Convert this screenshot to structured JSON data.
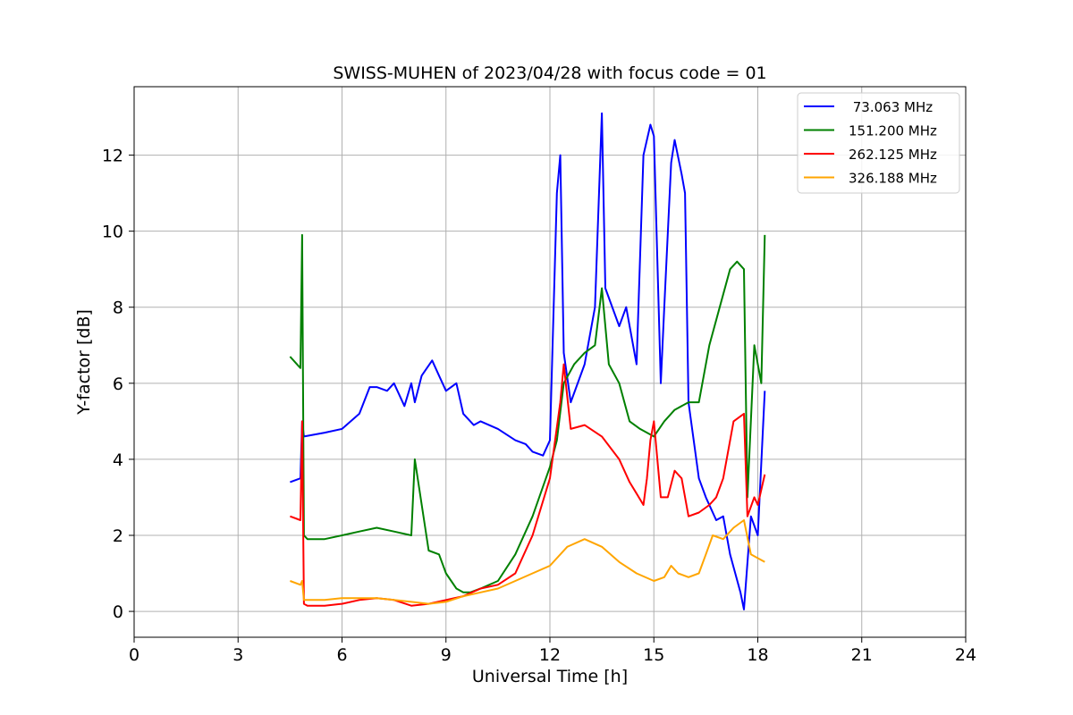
{
  "chart_data": {
    "type": "line",
    "title": "SWISS-MUHEN of 2023/04/28 with focus code = 01",
    "xlabel": "Universal Time [h]",
    "ylabel": "Y-factor [dB]",
    "xlim": [
      0,
      24
    ],
    "ylim": [
      -0.68,
      13.8
    ],
    "xticks": [
      0,
      3,
      6,
      9,
      12,
      15,
      18,
      21,
      24
    ],
    "yticks": [
      0,
      2,
      4,
      6,
      8,
      10,
      12
    ],
    "grid": true,
    "legend_position": "top-right",
    "series": [
      {
        "name": " 73.063 MHz",
        "color": "#0000ff",
        "x": [
          4.5,
          4.8,
          4.85,
          4.9,
          5.5,
          6.0,
          6.5,
          6.8,
          7.0,
          7.3,
          7.5,
          7.8,
          8.0,
          8.1,
          8.3,
          8.6,
          8.8,
          9.0,
          9.3,
          9.5,
          9.8,
          10.0,
          10.5,
          11.0,
          11.3,
          11.5,
          11.8,
          12.0,
          12.2,
          12.3,
          12.4,
          12.6,
          13.0,
          13.3,
          13.5,
          13.6,
          14.0,
          14.2,
          14.5,
          14.7,
          14.9,
          15.0,
          15.2,
          15.3,
          15.5,
          15.6,
          15.8,
          15.9,
          16.0,
          16.3,
          16.5,
          16.8,
          17.0,
          17.2,
          17.5,
          17.6,
          17.8,
          18.0,
          18.2
        ],
        "values": [
          3.4,
          3.5,
          5.0,
          4.6,
          4.7,
          4.8,
          5.2,
          5.9,
          5.9,
          5.8,
          6.0,
          5.4,
          6.0,
          5.5,
          6.2,
          6.6,
          6.2,
          5.8,
          6.0,
          5.2,
          4.9,
          5.0,
          4.8,
          4.5,
          4.4,
          4.2,
          4.1,
          4.5,
          11.0,
          12.0,
          6.8,
          5.5,
          6.5,
          8.0,
          13.1,
          8.5,
          7.5,
          8.0,
          6.5,
          12.0,
          12.8,
          12.5,
          6.0,
          8.0,
          11.8,
          12.4,
          11.5,
          11.0,
          5.5,
          3.5,
          3.0,
          2.4,
          2.5,
          1.5,
          0.5,
          0.05,
          2.5,
          2.0,
          5.8
        ]
      },
      {
        "name": "151.200 MHz",
        "color": "#008000",
        "x": [
          4.5,
          4.7,
          4.8,
          4.85,
          4.9,
          5.0,
          5.5,
          6.0,
          6.5,
          7.0,
          7.5,
          8.0,
          8.1,
          8.5,
          8.8,
          9.0,
          9.3,
          9.5,
          9.7,
          10.0,
          10.5,
          11.0,
          11.5,
          12.0,
          12.2,
          12.4,
          12.7,
          13.0,
          13.3,
          13.5,
          13.7,
          14.0,
          14.3,
          14.6,
          15.0,
          15.3,
          15.6,
          16.0,
          16.3,
          16.6,
          16.9,
          17.2,
          17.4,
          17.6,
          17.7,
          17.9,
          18.1,
          18.2
        ],
        "values": [
          6.7,
          6.5,
          6.4,
          9.9,
          2.0,
          1.9,
          1.9,
          2.0,
          2.1,
          2.2,
          2.1,
          2.0,
          4.0,
          1.6,
          1.5,
          1.0,
          0.6,
          0.5,
          0.5,
          0.6,
          0.8,
          1.5,
          2.5,
          3.8,
          4.5,
          6.0,
          6.5,
          6.8,
          7.0,
          8.5,
          6.5,
          6.0,
          5.0,
          4.8,
          4.6,
          5.0,
          5.3,
          5.5,
          5.5,
          7.0,
          8.0,
          9.0,
          9.2,
          9.0,
          3.0,
          7.0,
          6.0,
          9.9
        ]
      },
      {
        "name": "262.125 MHz",
        "color": "#ff0000",
        "x": [
          4.5,
          4.8,
          4.85,
          4.9,
          5.0,
          5.5,
          6.0,
          6.5,
          7.0,
          7.5,
          8.0,
          8.5,
          9.0,
          9.5,
          10.0,
          10.5,
          11.0,
          11.5,
          12.0,
          12.3,
          12.4,
          12.6,
          13.0,
          13.5,
          14.0,
          14.3,
          14.5,
          14.7,
          14.8,
          14.9,
          15.0,
          15.2,
          15.4,
          15.6,
          15.8,
          16.0,
          16.3,
          16.6,
          16.8,
          17.0,
          17.3,
          17.6,
          17.7,
          17.9,
          18.0,
          18.2
        ],
        "values": [
          2.5,
          2.4,
          5.0,
          0.2,
          0.15,
          0.15,
          0.2,
          0.3,
          0.35,
          0.3,
          0.15,
          0.2,
          0.3,
          0.4,
          0.6,
          0.7,
          1.0,
          2.0,
          3.5,
          5.5,
          6.5,
          4.8,
          4.9,
          4.6,
          4.0,
          3.4,
          3.1,
          2.8,
          3.5,
          4.5,
          5.0,
          3.0,
          3.0,
          3.7,
          3.5,
          2.5,
          2.6,
          2.8,
          3.0,
          3.5,
          5.0,
          5.2,
          2.5,
          3.0,
          2.8,
          3.6
        ]
      },
      {
        "name": "326.188 MHz",
        "color": "#ffa500",
        "x": [
          4.5,
          4.8,
          4.85,
          4.9,
          5.0,
          5.5,
          6.0,
          6.5,
          7.0,
          7.5,
          8.0,
          8.5,
          9.0,
          9.5,
          10.0,
          10.5,
          11.0,
          11.5,
          12.0,
          12.5,
          13.0,
          13.5,
          14.0,
          14.5,
          15.0,
          15.3,
          15.5,
          15.7,
          16.0,
          16.3,
          16.5,
          16.7,
          17.0,
          17.3,
          17.6,
          17.8,
          18.0,
          18.2
        ],
        "values": [
          0.8,
          0.7,
          0.8,
          0.3,
          0.3,
          0.3,
          0.35,
          0.35,
          0.35,
          0.3,
          0.25,
          0.2,
          0.25,
          0.4,
          0.5,
          0.6,
          0.8,
          1.0,
          1.2,
          1.7,
          1.9,
          1.7,
          1.3,
          1.0,
          0.8,
          0.9,
          1.2,
          1.0,
          0.9,
          1.0,
          1.5,
          2.0,
          1.9,
          2.2,
          2.4,
          1.5,
          1.4,
          1.3
        ]
      }
    ]
  }
}
